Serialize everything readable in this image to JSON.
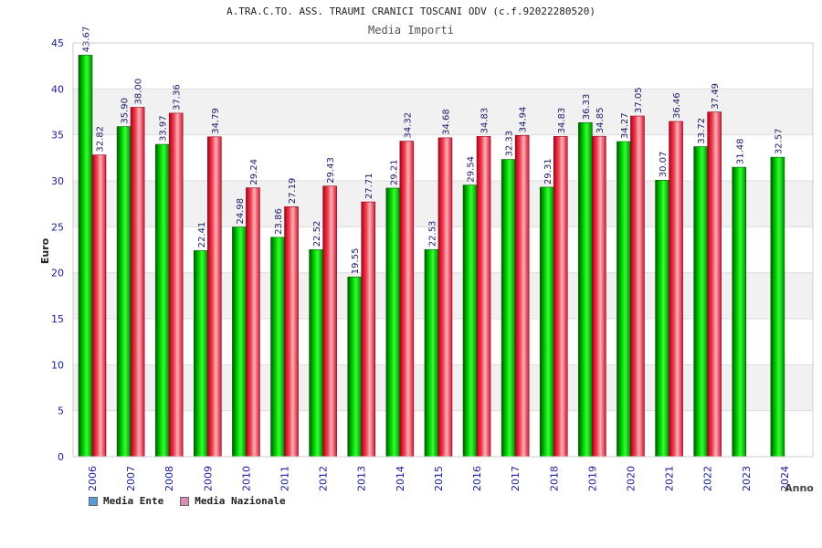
{
  "chart_data": {
    "type": "bar",
    "title": "A.TRA.C.TO. ASS. TRAUMI CRANICI TOSCANI ODV (c.f.92022280520)",
    "subtitle": "Media Importi",
    "xlabel": "Anno",
    "ylabel": "Euro",
    "ylim": [
      0,
      45
    ],
    "yticks": [
      0,
      5,
      10,
      15,
      20,
      25,
      30,
      35,
      40,
      45
    ],
    "grid": true,
    "legend_position": "bottom-left",
    "categories": [
      "2006",
      "2007",
      "2008",
      "2009",
      "2010",
      "2011",
      "2012",
      "2013",
      "2014",
      "2015",
      "2016",
      "2017",
      "2018",
      "2019",
      "2020",
      "2021",
      "2022",
      "2023",
      "2024"
    ],
    "series": [
      {
        "name": "Media Ente",
        "color": "#00c000",
        "legend_color": "#5b9bd5",
        "values": [
          43.67,
          35.9,
          33.97,
          22.41,
          24.98,
          23.86,
          22.52,
          19.55,
          29.21,
          22.53,
          29.54,
          32.33,
          29.31,
          36.33,
          34.27,
          30.07,
          33.72,
          31.48,
          32.57
        ],
        "labels": [
          "43.67",
          "35.90",
          "33.97",
          "22.41",
          "24.98",
          "23.86",
          "22.52",
          "19.55",
          "29.21",
          "22.53",
          "29.54",
          "32.33",
          "29.31",
          "36.33",
          "34.27",
          "30.07",
          "33.72",
          "31.48",
          "32.57"
        ]
      },
      {
        "name": "Media Nazionale",
        "color": "#e8304a",
        "legend_color": "#d98bb0",
        "values": [
          32.82,
          38.0,
          37.36,
          34.79,
          29.24,
          27.19,
          29.43,
          27.71,
          34.32,
          34.68,
          34.83,
          34.94,
          34.83,
          34.85,
          37.05,
          36.46,
          37.49,
          null,
          null
        ],
        "labels": [
          "32.82",
          "38.00",
          "37.36",
          "34.79",
          "29.24",
          "27.19",
          "29.43",
          "27.71",
          "34.32",
          "34.68",
          "34.83",
          "34.94",
          "34.83",
          "34.85",
          "37.05",
          "36.46",
          "37.49",
          null,
          null
        ]
      }
    ]
  }
}
